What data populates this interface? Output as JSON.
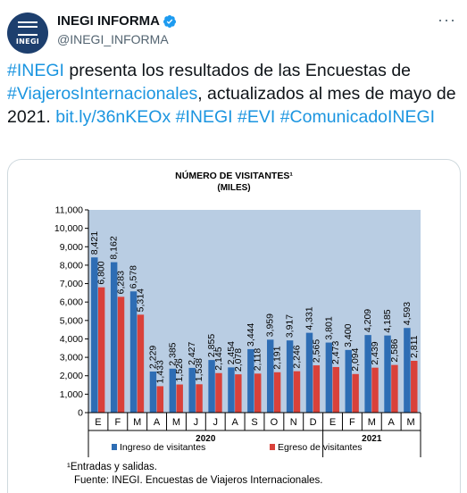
{
  "tweet": {
    "author_name": "INEGI INFORMA",
    "author_handle": "@INEGI_INFORMA",
    "avatar_text": "INEGI",
    "text_parts": {
      "p1": "#INEGI",
      "p2": " presenta los resultados de las Encuestas de ",
      "p3": "#ViajerosInternacionales",
      "p4": ", actualizados al mes de mayo de 2021. ",
      "p5": "bit.ly/36nKEOx",
      "p6": " ",
      "p7": "#INEGI",
      "p8": " ",
      "p9": "#EVI",
      "p10": " ",
      "p11": "#ComunicadoINEGI"
    },
    "link_color": "#1b95e0"
  },
  "chart_data": {
    "type": "bar",
    "title": "NÚMERO DE VISITANTES¹",
    "subtitle": "(MILES)",
    "categories": [
      "E",
      "F",
      "M",
      "A",
      "M",
      "J",
      "J",
      "A",
      "S",
      "O",
      "N",
      "D",
      "E",
      "F",
      "M",
      "A",
      "M"
    ],
    "year_groups": [
      {
        "label": "2020",
        "start": 0,
        "end": 11
      },
      {
        "label": "2021",
        "start": 12,
        "end": 16
      }
    ],
    "series": [
      {
        "name": "Ingreso de visitantes",
        "color": "#2e6db4",
        "values": [
          8421,
          8162,
          6578,
          2229,
          2385,
          2427,
          2855,
          2454,
          3444,
          3959,
          3917,
          4331,
          3801,
          3400,
          4209,
          4185,
          4593
        ],
        "labels": [
          "8,421",
          "8,162",
          "6,578",
          "2,229",
          "2,385",
          "2,427",
          "2,855",
          "2,454",
          "3,444",
          "3,959",
          "3,917",
          "4,331",
          "3,801",
          "3,400",
          "4,209",
          "4,185",
          "4,593"
        ]
      },
      {
        "name": "Egreso de visitantes",
        "color": "#d9413a",
        "values": [
          6800,
          6283,
          5314,
          1433,
          1526,
          1538,
          2145,
          2078,
          2118,
          2191,
          2246,
          2565,
          2473,
          2094,
          2439,
          2586,
          2811
        ],
        "labels": [
          "6,800",
          "6,283",
          "5,314",
          "1,433",
          "1,526",
          "1,538",
          "2,145",
          "2,078",
          "2,118",
          "2,191",
          "2,246",
          "2,565",
          "2,473",
          "2,094",
          "2,439",
          "2,586",
          "2,811"
        ]
      }
    ],
    "ylim": [
      0,
      11000
    ],
    "yticks": [
      0,
      1000,
      2000,
      3000,
      4000,
      5000,
      6000,
      7000,
      8000,
      9000,
      10000,
      11000
    ],
    "ytick_labels": [
      "0",
      "1,000",
      "2,000",
      "3,000",
      "4,000",
      "5,000",
      "6,000",
      "7,000",
      "8,000",
      "9,000",
      "10,000",
      "11,000"
    ],
    "plot_background": "#b9cde3",
    "legend_position": "bottom",
    "footnotes": [
      "¹Entradas y salidas.",
      "Fuente: INEGI. Encuestas de Viajeros Internacionales."
    ]
  }
}
